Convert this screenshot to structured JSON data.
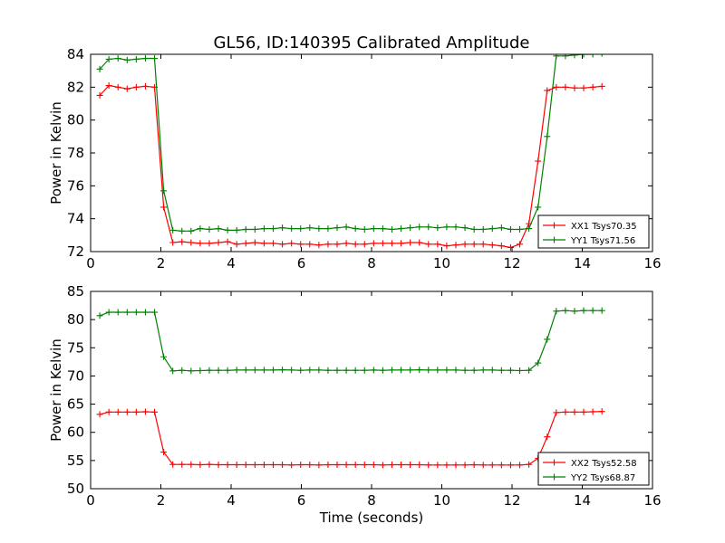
{
  "title": "GL56, ID:140395 Calibrated Amplitude",
  "colors": {
    "red": "#ff0000",
    "green": "#008000"
  },
  "chart_data": [
    {
      "type": "line",
      "xlabel": "",
      "ylabel": "Power in Kelvin",
      "xlim": [
        0,
        16
      ],
      "ylim": [
        72,
        84
      ],
      "xticks": [
        "0",
        "2",
        "4",
        "6",
        "8",
        "10",
        "12",
        "14",
        "16"
      ],
      "yticks": [
        "72",
        "74",
        "76",
        "78",
        "80",
        "82",
        "84"
      ],
      "legend_position": "lower-right",
      "x": [
        0.26,
        0.52,
        0.78,
        1.04,
        1.3,
        1.56,
        1.82,
        2.08,
        2.34,
        2.6,
        2.86,
        3.12,
        3.38,
        3.64,
        3.9,
        4.16,
        4.42,
        4.68,
        4.94,
        5.2,
        5.46,
        5.72,
        5.98,
        6.24,
        6.5,
        6.76,
        7.02,
        7.28,
        7.54,
        7.8,
        8.06,
        8.32,
        8.58,
        8.84,
        9.1,
        9.36,
        9.62,
        9.88,
        10.14,
        10.4,
        10.66,
        10.92,
        11.18,
        11.44,
        11.7,
        11.96,
        12.22,
        12.48,
        12.74,
        13.0,
        13.26,
        13.52,
        13.78,
        14.04,
        14.3,
        14.56
      ],
      "series": [
        {
          "name": "XX1 Tsys70.35",
          "color": "#ff0000",
          "values": [
            81.5,
            82.1,
            82.0,
            81.9,
            82.0,
            82.05,
            82.0,
            74.7,
            72.55,
            72.6,
            72.55,
            72.5,
            72.5,
            72.55,
            72.6,
            72.45,
            72.5,
            72.55,
            72.5,
            72.5,
            72.45,
            72.5,
            72.45,
            72.45,
            72.4,
            72.45,
            72.45,
            72.5,
            72.45,
            72.45,
            72.5,
            72.5,
            72.5,
            72.5,
            72.55,
            72.55,
            72.45,
            72.45,
            72.35,
            72.4,
            72.45,
            72.45,
            72.45,
            72.4,
            72.35,
            72.25,
            72.45,
            73.7,
            77.5,
            81.8,
            82.0,
            82.0,
            81.95,
            81.95,
            82.0,
            82.05
          ]
        },
        {
          "name": "YY1 Tsys71.56",
          "color": "#008000",
          "values": [
            83.1,
            83.7,
            83.75,
            83.65,
            83.7,
            83.75,
            83.75,
            75.7,
            73.3,
            73.25,
            73.25,
            73.4,
            73.35,
            73.4,
            73.3,
            73.3,
            73.35,
            73.35,
            73.4,
            73.4,
            73.45,
            73.4,
            73.4,
            73.45,
            73.4,
            73.4,
            73.45,
            73.5,
            73.4,
            73.35,
            73.4,
            73.4,
            73.35,
            73.4,
            73.45,
            73.5,
            73.5,
            73.45,
            73.5,
            73.5,
            73.45,
            73.35,
            73.35,
            73.4,
            73.45,
            73.35,
            73.35,
            73.4,
            74.7,
            79.0,
            83.9,
            83.9,
            83.95,
            84.0,
            84.0,
            84.05
          ]
        }
      ]
    },
    {
      "type": "line",
      "xlabel": "Time (seconds)",
      "ylabel": "Power in Kelvin",
      "xlim": [
        0,
        16
      ],
      "ylim": [
        50,
        85
      ],
      "xticks": [
        "0",
        "2",
        "4",
        "6",
        "8",
        "10",
        "12",
        "14",
        "16"
      ],
      "yticks": [
        "50",
        "55",
        "60",
        "65",
        "70",
        "75",
        "80",
        "85"
      ],
      "legend_position": "lower-right",
      "x": [
        0.26,
        0.52,
        0.78,
        1.04,
        1.3,
        1.56,
        1.82,
        2.08,
        2.34,
        2.6,
        2.86,
        3.12,
        3.38,
        3.64,
        3.9,
        4.16,
        4.42,
        4.68,
        4.94,
        5.2,
        5.46,
        5.72,
        5.98,
        6.24,
        6.5,
        6.76,
        7.02,
        7.28,
        7.54,
        7.8,
        8.06,
        8.32,
        8.58,
        8.84,
        9.1,
        9.36,
        9.62,
        9.88,
        10.14,
        10.4,
        10.66,
        10.92,
        11.18,
        11.44,
        11.7,
        11.96,
        12.22,
        12.48,
        12.74,
        13.0,
        13.26,
        13.52,
        13.78,
        14.04,
        14.3,
        14.56
      ],
      "series": [
        {
          "name": "XX2 Tsys52.58",
          "color": "#ff0000",
          "values": [
            63.2,
            63.6,
            63.6,
            63.6,
            63.6,
            63.65,
            63.6,
            56.5,
            54.3,
            54.3,
            54.3,
            54.25,
            54.3,
            54.25,
            54.25,
            54.25,
            54.25,
            54.25,
            54.25,
            54.25,
            54.25,
            54.2,
            54.25,
            54.25,
            54.2,
            54.25,
            54.25,
            54.25,
            54.25,
            54.25,
            54.25,
            54.2,
            54.25,
            54.25,
            54.25,
            54.25,
            54.2,
            54.2,
            54.2,
            54.2,
            54.2,
            54.25,
            54.2,
            54.2,
            54.2,
            54.2,
            54.2,
            54.3,
            55.4,
            59.2,
            63.5,
            63.6,
            63.6,
            63.6,
            63.65,
            63.7
          ]
        },
        {
          "name": "YY2 Tsys68.87",
          "color": "#008000",
          "values": [
            80.7,
            81.3,
            81.3,
            81.3,
            81.3,
            81.3,
            81.3,
            73.4,
            70.9,
            71.0,
            70.9,
            70.95,
            71.0,
            71.0,
            71.0,
            71.05,
            71.05,
            71.05,
            71.05,
            71.05,
            71.1,
            71.05,
            71.0,
            71.05,
            71.05,
            71.0,
            71.0,
            71.0,
            71.0,
            71.0,
            71.05,
            71.0,
            71.05,
            71.05,
            71.05,
            71.1,
            71.05,
            71.05,
            71.05,
            71.05,
            71.0,
            71.0,
            71.05,
            71.05,
            71.0,
            71.0,
            70.95,
            71.0,
            72.3,
            76.5,
            81.5,
            81.6,
            81.5,
            81.6,
            81.6,
            81.6
          ]
        }
      ]
    }
  ]
}
